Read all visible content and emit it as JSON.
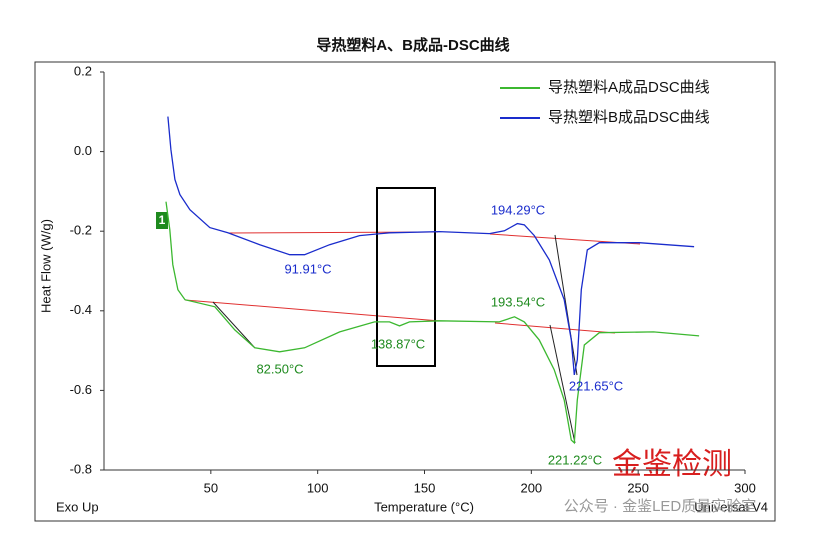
{
  "chart_data": {
    "type": "line",
    "title": "导热塑料A、B成品-DSC曲线",
    "x_label": "Temperature (°C)",
    "y_label": "Heat Flow (W/g)",
    "footer_left": "Exo Up",
    "footer_right": "Universal V4",
    "curve_marker": "1",
    "xlim": [
      0,
      300
    ],
    "xticks": [
      50,
      100,
      150,
      200,
      250,
      300
    ],
    "ylim": [
      -0.8,
      0.2
    ],
    "yticks": [
      0.2,
      {
        "value": 0,
        "label": "0.0"
      },
      -0.2,
      -0.4,
      -0.6,
      -0.8
    ],
    "series": [
      {
        "name": "导热塑料A成品DSC曲线",
        "color": "#3cb830",
        "x": [
          29,
          30.8,
          32.2,
          34.6,
          37.9,
          51.9,
          61.2,
          70.6,
          82.2,
          93.9,
          110.3,
          126.6,
          133.6,
          138.3,
          143,
          157,
          185,
          192.1,
          196.7,
          203.7,
          210.7,
          215.4,
          218.7,
          220.1,
          221.5,
          224.8,
          231.8,
          257.2,
          278.5
        ],
        "values": [
          -0.126,
          -0.196,
          -0.284,
          -0.347,
          -0.372,
          -0.39,
          -0.448,
          -0.493,
          -0.503,
          -0.493,
          -0.453,
          -0.428,
          -0.428,
          -0.438,
          -0.428,
          -0.425,
          -0.428,
          -0.415,
          -0.428,
          -0.473,
          -0.548,
          -0.624,
          -0.725,
          -0.732,
          -0.624,
          -0.486,
          -0.455,
          -0.453,
          -0.463
        ]
      },
      {
        "name": "导热塑料B成品DSC曲线",
        "color": "#1a2ccc",
        "x": [
          29.9,
          31.3,
          33.2,
          35.5,
          40.2,
          49.5,
          58,
          72.9,
          86.9,
          93.9,
          105.6,
          119.6,
          133.6,
          157,
          180.4,
          187.4,
          193.5,
          196.7,
          201.4,
          208.4,
          215.4,
          218.7,
          220.1,
          221.5,
          223.4,
          226.2,
          231.8,
          250.5,
          276.2
        ],
        "values": [
          0.088,
          0.005,
          -0.07,
          -0.108,
          -0.146,
          -0.191,
          -0.204,
          -0.234,
          -0.259,
          -0.259,
          -0.234,
          -0.211,
          -0.204,
          -0.201,
          -0.206,
          -0.199,
          -0.181,
          -0.184,
          -0.211,
          -0.272,
          -0.372,
          -0.473,
          -0.561,
          -0.523,
          -0.347,
          -0.247,
          -0.229,
          -0.229,
          -0.239
        ]
      }
    ],
    "annotations": [
      {
        "text": "91.91°C",
        "color": "#1a2ccc"
      },
      {
        "text": "194.29°C",
        "color": "#1a2ccc"
      },
      {
        "text": "221.65°C",
        "color": "#1a2ccc"
      },
      {
        "text": "82.50°C",
        "color": "#1e8a1e"
      },
      {
        "text": "138.87°C",
        "color": "#1e8a1e"
      },
      {
        "text": "193.54°C",
        "color": "#1e8a1e"
      },
      {
        "text": "221.22°C",
        "color": "#1e8a1e"
      }
    ],
    "watermark": "金鉴检测",
    "wechat": "公众号 · 金鉴LED质量实验室"
  }
}
